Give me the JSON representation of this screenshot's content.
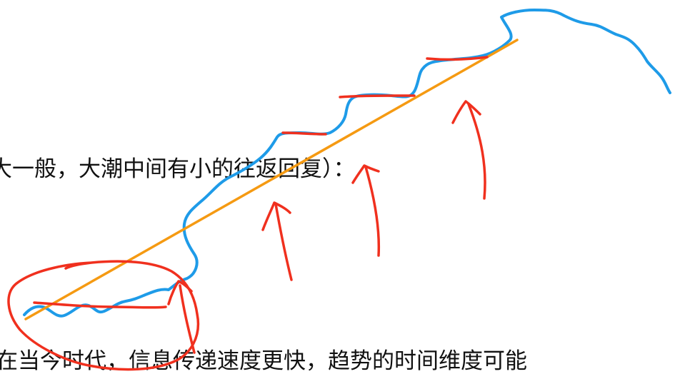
{
  "texts": {
    "line1": "大一般，大潮中间有小的往返回复）：",
    "line2": "在当今时代，信息传递速度更快，趋势的时间维度可能"
  },
  "colors": {
    "blue_curve": "#1e9be8",
    "trend_line": "#f59a12",
    "red_annotations": "#f0301e",
    "text": "#111111"
  }
}
